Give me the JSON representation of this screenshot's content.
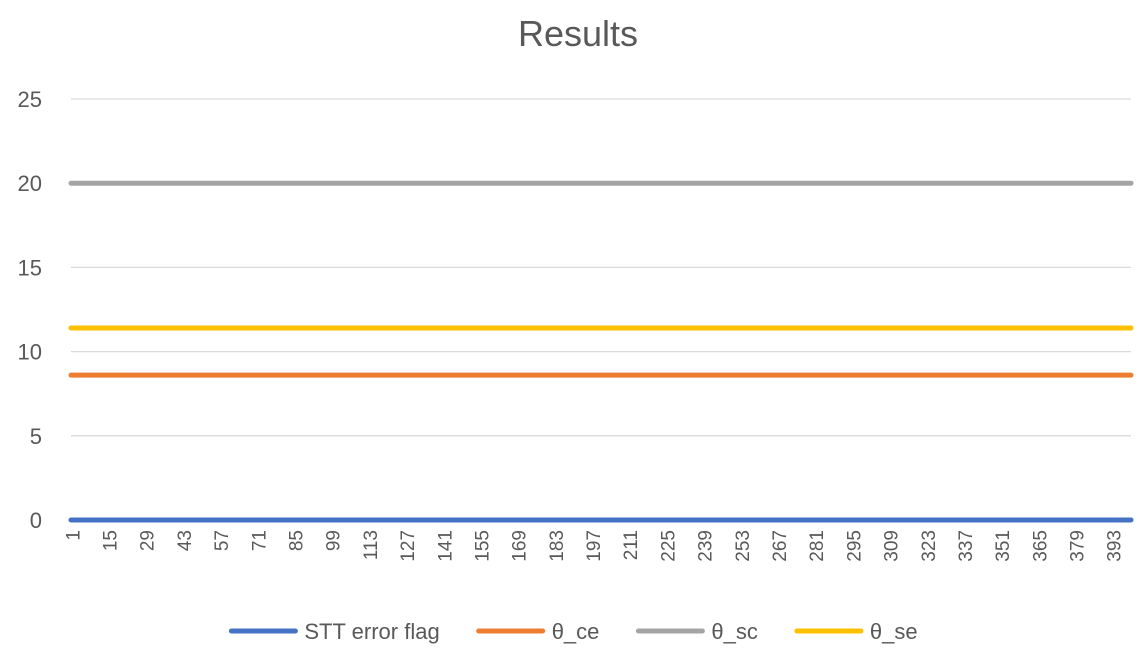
{
  "chart_data": {
    "type": "line",
    "title": "Results",
    "xlabel": "",
    "ylabel": "",
    "ylim": [
      0,
      25
    ],
    "yticks": [
      0,
      5,
      10,
      15,
      20,
      25
    ],
    "grid": true,
    "x_range": [
      1,
      399
    ],
    "xtick_labels": [
      "1",
      "15",
      "29",
      "43",
      "57",
      "71",
      "85",
      "99",
      "113",
      "127",
      "141",
      "155",
      "169",
      "183",
      "197",
      "211",
      "225",
      "239",
      "253",
      "267",
      "281",
      "295",
      "309",
      "323",
      "337",
      "351",
      "365",
      "379",
      "393"
    ],
    "series": [
      {
        "name": "STT error flag",
        "color": "#4472C4",
        "values": [
          0
        ],
        "note_constant": true
      },
      {
        "name": "θ_ce",
        "color": "#ED7D31",
        "values": [
          8.6
        ],
        "note_constant": true
      },
      {
        "name": "θ_sc",
        "color": "#A5A5A5",
        "values": [
          20
        ],
        "note_constant": true
      },
      {
        "name": "θ_se",
        "color": "#FFC000",
        "values": [
          11.4
        ],
        "note_constant": true
      }
    ],
    "legend_position": "bottom"
  }
}
